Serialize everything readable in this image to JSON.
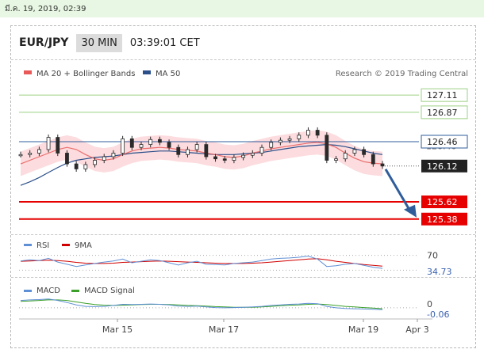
{
  "date_text": "มี.ค. 19, 2019, 02:39",
  "header": {
    "pair": "EUR/JPY",
    "timeframe": "30 MIN",
    "time": "03:39:01 CET"
  },
  "legend": {
    "ma20": "MA 20 + Bollinger Bands",
    "ma50": "MA 50",
    "credit": "Research © 2019 Trading Central"
  },
  "colors": {
    "ma20": "#e85a5a",
    "ma50": "#2b4f8a",
    "band": "#fbd3d6",
    "resistance": "#9dd084",
    "pivot": "#2f5d9c",
    "support": "#e60000",
    "candle": "#2a2a2a",
    "rsi": "#5f8fd4",
    "rsi_ma": "#d00000",
    "macd": "#5f8fd4",
    "macd_signal": "#3aa02a"
  },
  "chart_data": [
    {
      "type": "line",
      "subtype": "candlestick",
      "symbol": "EUR/JPY",
      "timeframe": "30 MIN",
      "x_ticks": [
        "Mar 15",
        "Mar 17",
        "Mar 19",
        "Apr 3"
      ],
      "ylim": [
        125.3,
        127.2
      ],
      "series": [
        {
          "name": "MA 20 + Bollinger Bands",
          "values": [
            126.15,
            126.2,
            126.25,
            126.3,
            126.35,
            126.38,
            126.35,
            126.28,
            126.22,
            126.2,
            126.22,
            126.28,
            126.33,
            126.36,
            126.37,
            126.38,
            126.37,
            126.35,
            126.34,
            126.33,
            126.3,
            126.28,
            126.25,
            126.24,
            126.26,
            126.3,
            126.33,
            126.36,
            126.38,
            126.4,
            126.42,
            126.44,
            126.45,
            126.43,
            126.38,
            126.3,
            126.23,
            126.18,
            126.16,
            126.15
          ]
        },
        {
          "name": "MA 50",
          "values": [
            125.85,
            125.9,
            125.96,
            126.03,
            126.1,
            126.16,
            126.2,
            126.22,
            126.24,
            126.25,
            126.26,
            126.28,
            126.3,
            126.31,
            126.32,
            126.33,
            126.33,
            126.32,
            126.31,
            126.3,
            126.29,
            126.28,
            126.28,
            126.28,
            126.29,
            126.3,
            126.31,
            126.33,
            126.35,
            126.37,
            126.39,
            126.4,
            126.41,
            126.42,
            126.41,
            126.39,
            126.36,
            126.33,
            126.3,
            126.28
          ]
        },
        {
          "name": "Price",
          "values": [
            126.28,
            126.3,
            126.35,
            126.52,
            126.3,
            126.15,
            126.08,
            126.14,
            126.2,
            126.25,
            126.3,
            126.5,
            126.38,
            126.42,
            126.49,
            126.45,
            126.38,
            126.28,
            126.35,
            126.42,
            126.25,
            126.22,
            126.2,
            126.24,
            126.27,
            126.3,
            126.38,
            126.45,
            126.48,
            126.5,
            126.55,
            126.62,
            126.55,
            126.2,
            126.22,
            126.3,
            126.35,
            126.28,
            126.15,
            126.12
          ]
        }
      ],
      "levels": [
        {
          "value": 127.11,
          "label": "127.11",
          "kind": "resistance"
        },
        {
          "value": 126.87,
          "label": "126.87",
          "kind": "resistance"
        },
        {
          "value": 126.46,
          "label": "126.46",
          "kind": "pivot"
        },
        {
          "value": 126.12,
          "label": "126.12",
          "kind": "last"
        },
        {
          "value": 125.62,
          "label": "125.62",
          "kind": "support"
        },
        {
          "value": 125.38,
          "label": "125.38",
          "kind": "support"
        }
      ],
      "hidden_label": "126.40",
      "forecast_arrow": {
        "from": 126.12,
        "to": 125.38
      }
    },
    {
      "type": "line",
      "name": "RSI",
      "legend": [
        "RSI",
        "9MA"
      ],
      "ylim": [
        20,
        80
      ],
      "levels": [
        {
          "value": 70,
          "label": "70"
        },
        {
          "value": 30,
          "label": ""
        }
      ],
      "last_label": "34.73",
      "series": [
        {
          "name": "RSI",
          "values": [
            55,
            58,
            56,
            62,
            52,
            46,
            40,
            44,
            48,
            52,
            55,
            60,
            50,
            54,
            58,
            56,
            50,
            44,
            50,
            54,
            46,
            45,
            44,
            48,
            50,
            52,
            56,
            60,
            62,
            63,
            65,
            68,
            60,
            40,
            42,
            46,
            48,
            43,
            38,
            34.73
          ]
        },
        {
          "name": "9MA",
          "values": [
            54,
            55,
            56,
            57,
            56,
            54,
            51,
            49,
            48,
            48,
            49,
            51,
            52,
            53,
            54,
            55,
            54,
            53,
            52,
            51,
            50,
            49,
            48,
            48,
            48,
            49,
            50,
            52,
            54,
            56,
            58,
            60,
            61,
            58,
            54,
            51,
            48,
            45,
            43,
            41
          ]
        }
      ]
    },
    {
      "type": "line",
      "name": "MACD",
      "legend": [
        "MACD",
        "MACD Signal"
      ],
      "ylim": [
        -0.35,
        0.4
      ],
      "zero_label": "0",
      "last_label": "-0.06",
      "series": [
        {
          "name": "MACD",
          "values": [
            0.25,
            0.27,
            0.28,
            0.3,
            0.25,
            0.18,
            0.1,
            0.05,
            0.04,
            0.05,
            0.08,
            0.12,
            0.11,
            0.12,
            0.13,
            0.12,
            0.1,
            0.06,
            0.05,
            0.06,
            0.03,
            0.01,
            0.0,
            0.01,
            0.02,
            0.03,
            0.05,
            0.08,
            0.1,
            0.12,
            0.13,
            0.15,
            0.14,
            0.05,
            0.0,
            -0.02,
            -0.03,
            -0.04,
            -0.05,
            -0.06
          ]
        },
        {
          "name": "MACD Signal",
          "values": [
            0.22,
            0.23,
            0.25,
            0.27,
            0.27,
            0.25,
            0.2,
            0.15,
            0.11,
            0.09,
            0.08,
            0.09,
            0.1,
            0.11,
            0.12,
            0.12,
            0.11,
            0.1,
            0.08,
            0.07,
            0.06,
            0.04,
            0.03,
            0.02,
            0.02,
            0.02,
            0.03,
            0.05,
            0.07,
            0.09,
            0.1,
            0.12,
            0.13,
            0.11,
            0.08,
            0.05,
            0.03,
            0.01,
            -0.01,
            -0.03
          ]
        }
      ]
    }
  ]
}
